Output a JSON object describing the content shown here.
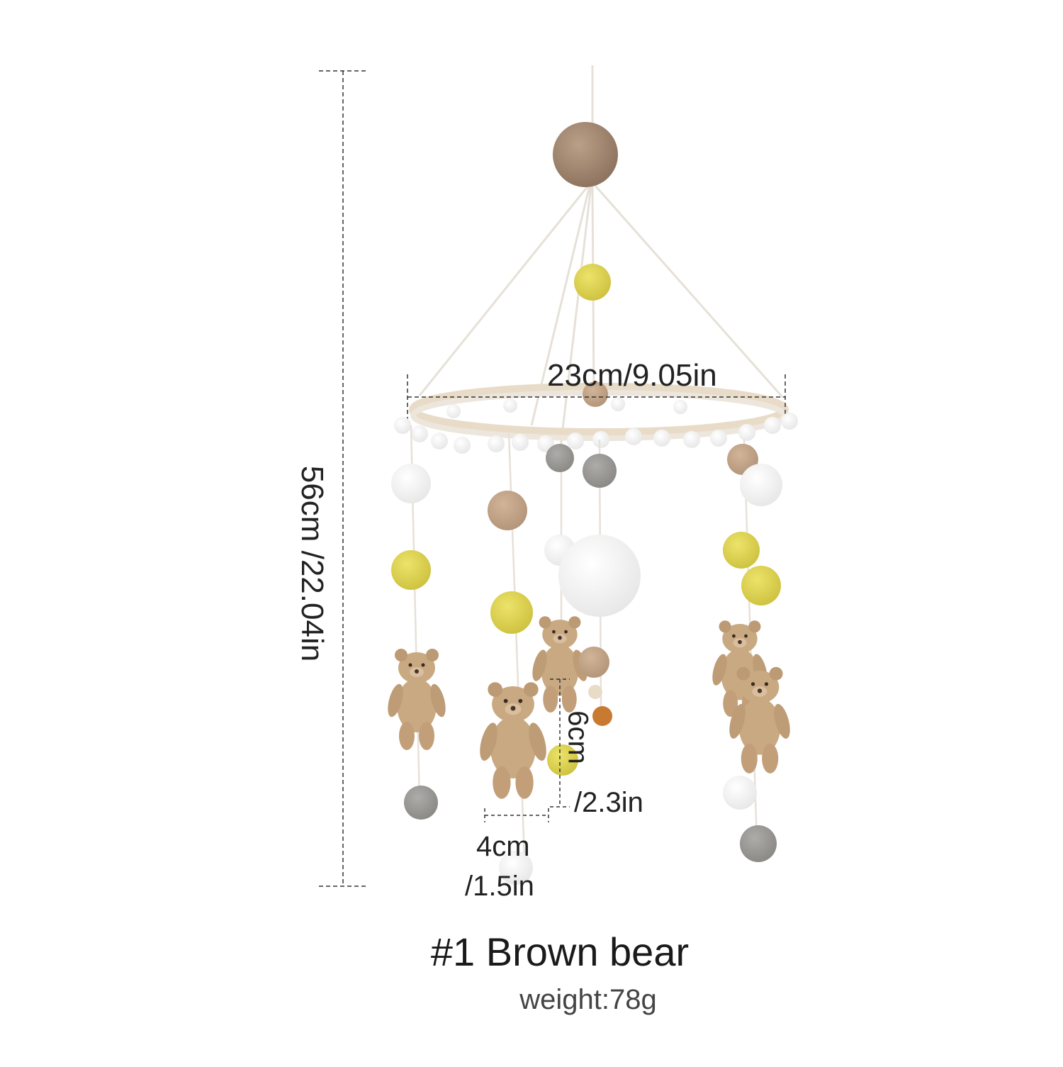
{
  "dimensions": {
    "height": "56cm /22.04in",
    "ring_diameter": "23cm/9.05in",
    "tassel_length_cm": "6cm",
    "tassel_length_in": "/2.3in",
    "bear_width_cm": "4cm",
    "bear_width_in": "/1.5in"
  },
  "product": {
    "title": "#1 Brown bear",
    "weight": "weight:78g"
  },
  "colors": {
    "brown_pompom": "#a88a72",
    "tan_felt": "#c4a88c",
    "yellow_felt": "#e3da5c",
    "grey_felt": "#9c9a96",
    "white_felt": "#fafafa",
    "bear_fur": "#c9a982",
    "ring_wood": "#e8dcc8",
    "string": "#e6e1d8",
    "dimension_line": "#333333"
  }
}
